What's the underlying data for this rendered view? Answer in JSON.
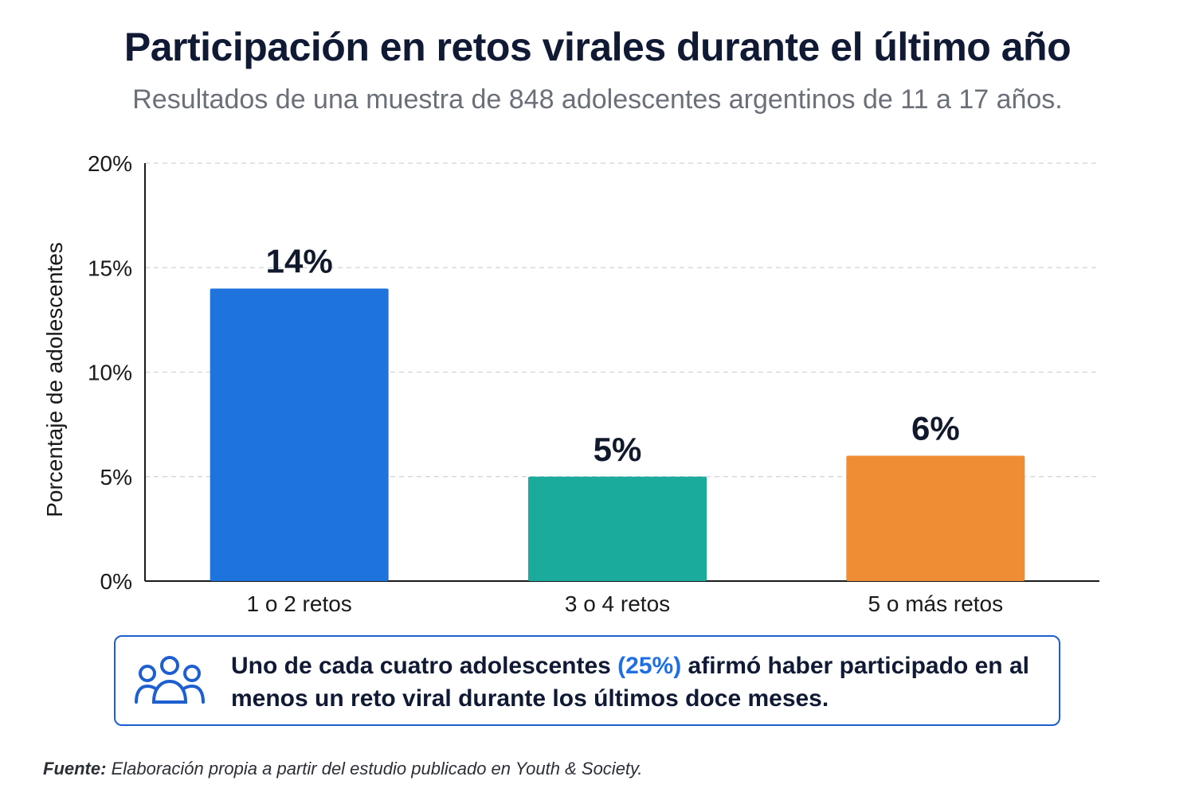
{
  "header": {
    "title": "Participación en retos virales durante el último año",
    "subtitle": "Resultados de una muestra de 848 adolescentes argentinos de 11 a 17 años."
  },
  "chart_data": {
    "type": "bar",
    "title": "Participación en retos virales durante el último año",
    "subtitle": "Resultados de una muestra de 848 adolescentes argentinos de 11 a 17 años.",
    "categories": [
      "1 o 2 retos",
      "3 o 4 retos",
      "5 o más retos"
    ],
    "values": [
      14,
      5,
      6
    ],
    "data_labels": [
      "14%",
      "5%",
      "6%"
    ],
    "colors": [
      "#1e74dc",
      "#1aab9c",
      "#ef8d35"
    ],
    "xlabel": "",
    "ylabel": "Porcentaje de adolescentes",
    "ylim": [
      0,
      20
    ],
    "yticks": [
      0,
      5,
      10,
      15,
      20
    ],
    "ytick_labels": [
      "0%",
      "5%",
      "10%",
      "15%",
      "20%"
    ],
    "grid": true,
    "legend": "none"
  },
  "callout": {
    "icon": "people-group-icon",
    "text_before": "Uno de cada cuatro adolescentes ",
    "highlight": "(25%)",
    "text_after": " afirmó haber participado en al menos un reto viral durante los últimos doce meses.",
    "border_color": "#1d5fd0",
    "highlight_color": "#1f6fe0"
  },
  "source": {
    "label": "Fuente:",
    "text": " Elaboración propia a partir del estudio publicado en Youth & Society."
  }
}
